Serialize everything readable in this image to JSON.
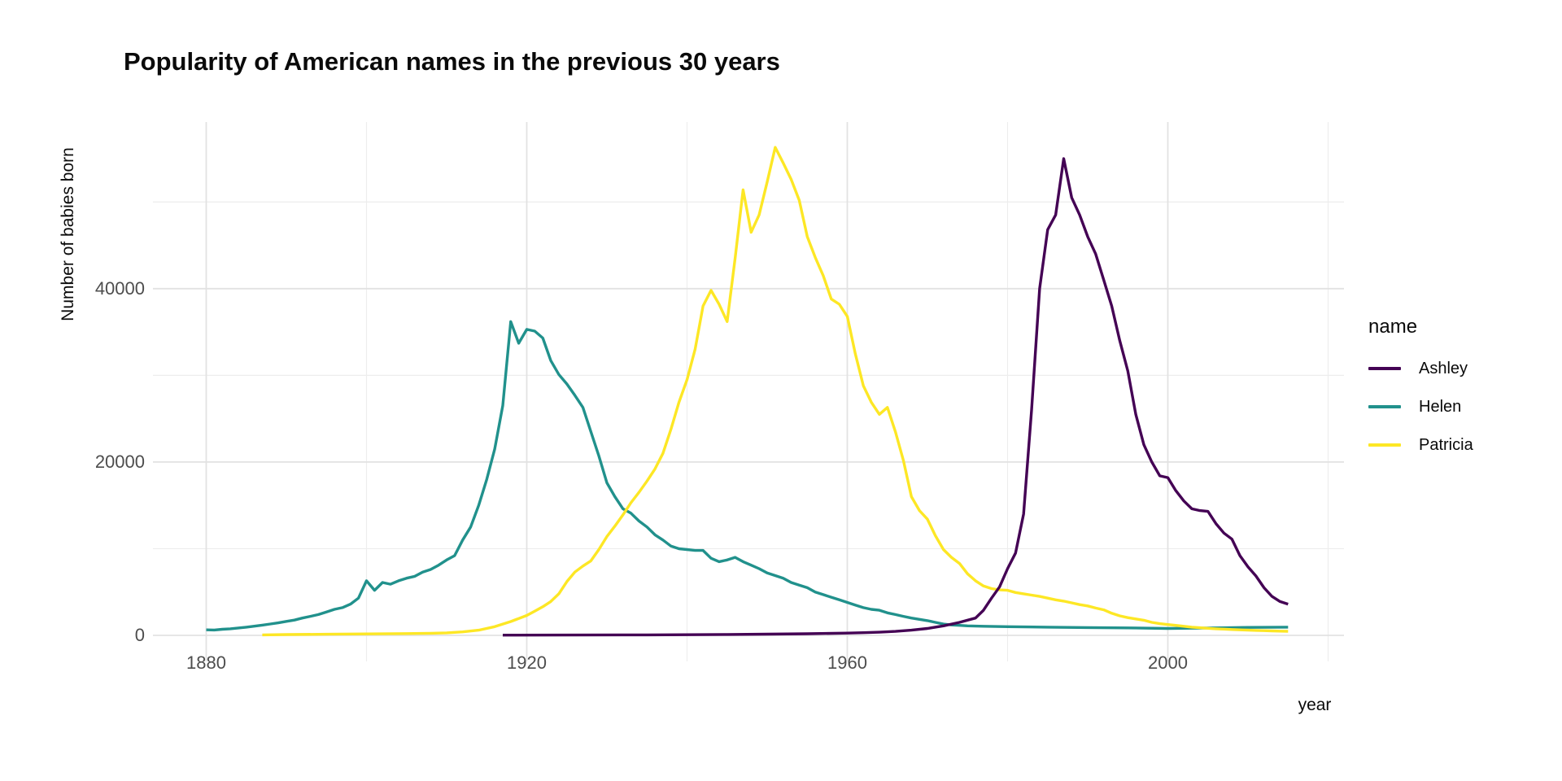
{
  "title": "Popularity of American names in the previous 30 years",
  "axes": {
    "x_label": "year",
    "y_label": "Number of babies born",
    "x_tick_labels": [
      "1880",
      "1920",
      "1960",
      "2000"
    ],
    "y_tick_labels": [
      "0",
      "20000",
      "40000"
    ]
  },
  "legend": {
    "title": "name",
    "items": [
      "Ashley",
      "Helen",
      "Patricia"
    ]
  },
  "colors": {
    "ashley": "#440154",
    "helen": "#21918c",
    "patricia": "#fde725",
    "grid_major": "#e2e2e2",
    "grid_minor": "#ededed",
    "tick_text": "#4d4d4d",
    "title_text": "#0a0a0a"
  },
  "chart_data": {
    "type": "line",
    "title": "Popularity of American names in the previous 30 years",
    "xlabel": "year",
    "ylabel": "Number of babies born",
    "xlim": [
      1873,
      2022
    ],
    "ylim": [
      0,
      59000
    ],
    "grid": {
      "x_major": [
        1880,
        1920,
        1960,
        2000
      ],
      "x_minor": [
        1900,
        1940,
        1980,
        2020
      ],
      "y_major": [
        0,
        20000,
        40000
      ],
      "y_minor": [
        10000,
        30000,
        50000
      ]
    },
    "legend_position": "right",
    "series": [
      {
        "name": "Helen",
        "color": "#21918c",
        "points": [
          [
            1880,
            640
          ],
          [
            1881,
            620
          ],
          [
            1882,
            700
          ],
          [
            1883,
            760
          ],
          [
            1884,
            850
          ],
          [
            1885,
            950
          ],
          [
            1886,
            1060
          ],
          [
            1887,
            1180
          ],
          [
            1888,
            1310
          ],
          [
            1889,
            1450
          ],
          [
            1890,
            1610
          ],
          [
            1891,
            1760
          ],
          [
            1892,
            2000
          ],
          [
            1893,
            2200
          ],
          [
            1894,
            2400
          ],
          [
            1895,
            2700
          ],
          [
            1896,
            3000
          ],
          [
            1897,
            3200
          ],
          [
            1898,
            3600
          ],
          [
            1899,
            4300
          ],
          [
            1900,
            6300
          ],
          [
            1901,
            5200
          ],
          [
            1902,
            6100
          ],
          [
            1903,
            5900
          ],
          [
            1904,
            6300
          ],
          [
            1905,
            6600
          ],
          [
            1906,
            6800
          ],
          [
            1907,
            7300
          ],
          [
            1908,
            7600
          ],
          [
            1909,
            8100
          ],
          [
            1910,
            8700
          ],
          [
            1911,
            9200
          ],
          [
            1912,
            11000
          ],
          [
            1913,
            12500
          ],
          [
            1914,
            15000
          ],
          [
            1915,
            18000
          ],
          [
            1916,
            21500
          ],
          [
            1917,
            26500
          ],
          [
            1918,
            36200
          ],
          [
            1919,
            33700
          ],
          [
            1920,
            35300
          ],
          [
            1921,
            35100
          ],
          [
            1922,
            34300
          ],
          [
            1923,
            31700
          ],
          [
            1924,
            30100
          ],
          [
            1925,
            29000
          ],
          [
            1926,
            27700
          ],
          [
            1927,
            26300
          ],
          [
            1928,
            23500
          ],
          [
            1929,
            20700
          ],
          [
            1930,
            17600
          ],
          [
            1931,
            16000
          ],
          [
            1932,
            14600
          ],
          [
            1933,
            14100
          ],
          [
            1934,
            13200
          ],
          [
            1935,
            12500
          ],
          [
            1936,
            11600
          ],
          [
            1937,
            11000
          ],
          [
            1938,
            10300
          ],
          [
            1939,
            10000
          ],
          [
            1940,
            9900
          ],
          [
            1941,
            9800
          ],
          [
            1942,
            9800
          ],
          [
            1943,
            8900
          ],
          [
            1944,
            8500
          ],
          [
            1945,
            8700
          ],
          [
            1946,
            9000
          ],
          [
            1947,
            8500
          ],
          [
            1948,
            8100
          ],
          [
            1949,
            7700
          ],
          [
            1950,
            7200
          ],
          [
            1951,
            6900
          ],
          [
            1952,
            6600
          ],
          [
            1953,
            6100
          ],
          [
            1954,
            5800
          ],
          [
            1955,
            5500
          ],
          [
            1956,
            5000
          ],
          [
            1957,
            4700
          ],
          [
            1958,
            4400
          ],
          [
            1959,
            4100
          ],
          [
            1960,
            3800
          ],
          [
            1961,
            3500
          ],
          [
            1962,
            3200
          ],
          [
            1963,
            3000
          ],
          [
            1964,
            2900
          ],
          [
            1965,
            2600
          ],
          [
            1966,
            2400
          ],
          [
            1967,
            2200
          ],
          [
            1968,
            2000
          ],
          [
            1969,
            1850
          ],
          [
            1970,
            1700
          ],
          [
            1971,
            1500
          ],
          [
            1972,
            1300
          ],
          [
            1973,
            1200
          ],
          [
            1974,
            1150
          ],
          [
            1975,
            1100
          ],
          [
            1977,
            1050
          ],
          [
            1980,
            1000
          ],
          [
            1985,
            950
          ],
          [
            1990,
            900
          ],
          [
            1995,
            860
          ],
          [
            2000,
            800
          ],
          [
            2005,
            850
          ],
          [
            2010,
            920
          ],
          [
            2015,
            950
          ]
        ]
      },
      {
        "name": "Patricia",
        "color": "#fde725",
        "points": [
          [
            1887,
            60
          ],
          [
            1890,
            90
          ],
          [
            1895,
            130
          ],
          [
            1900,
            170
          ],
          [
            1905,
            210
          ],
          [
            1908,
            240
          ],
          [
            1910,
            290
          ],
          [
            1912,
            400
          ],
          [
            1914,
            600
          ],
          [
            1916,
            1000
          ],
          [
            1918,
            1600
          ],
          [
            1920,
            2300
          ],
          [
            1921,
            2800
          ],
          [
            1922,
            3300
          ],
          [
            1923,
            3900
          ],
          [
            1924,
            4800
          ],
          [
            1925,
            6200
          ],
          [
            1926,
            7300
          ],
          [
            1927,
            8000
          ],
          [
            1928,
            8600
          ],
          [
            1929,
            9900
          ],
          [
            1930,
            11400
          ],
          [
            1931,
            12600
          ],
          [
            1932,
            13900
          ],
          [
            1933,
            15300
          ],
          [
            1934,
            16500
          ],
          [
            1935,
            17800
          ],
          [
            1936,
            19200
          ],
          [
            1937,
            21000
          ],
          [
            1938,
            23800
          ],
          [
            1939,
            26900
          ],
          [
            1940,
            29500
          ],
          [
            1941,
            33000
          ],
          [
            1942,
            38000
          ],
          [
            1943,
            39800
          ],
          [
            1944,
            38200
          ],
          [
            1945,
            36200
          ],
          [
            1946,
            43500
          ],
          [
            1947,
            51400
          ],
          [
            1948,
            46500
          ],
          [
            1949,
            48500
          ],
          [
            1950,
            52300
          ],
          [
            1951,
            56300
          ],
          [
            1952,
            54500
          ],
          [
            1953,
            52600
          ],
          [
            1954,
            50200
          ],
          [
            1955,
            46000
          ],
          [
            1956,
            43600
          ],
          [
            1957,
            41500
          ],
          [
            1958,
            38800
          ],
          [
            1959,
            38200
          ],
          [
            1960,
            36800
          ],
          [
            1961,
            32500
          ],
          [
            1962,
            28800
          ],
          [
            1963,
            26900
          ],
          [
            1964,
            25500
          ],
          [
            1965,
            26300
          ],
          [
            1966,
            23500
          ],
          [
            1967,
            20200
          ],
          [
            1968,
            16000
          ],
          [
            1969,
            14400
          ],
          [
            1970,
            13400
          ],
          [
            1971,
            11500
          ],
          [
            1972,
            9900
          ],
          [
            1973,
            9000
          ],
          [
            1974,
            8300
          ],
          [
            1975,
            7100
          ],
          [
            1976,
            6300
          ],
          [
            1977,
            5700
          ],
          [
            1978,
            5400
          ],
          [
            1979,
            5250
          ],
          [
            1980,
            5200
          ],
          [
            1981,
            4950
          ],
          [
            1982,
            4800
          ],
          [
            1983,
            4650
          ],
          [
            1984,
            4500
          ],
          [
            1985,
            4300
          ],
          [
            1986,
            4100
          ],
          [
            1987,
            3950
          ],
          [
            1988,
            3750
          ],
          [
            1989,
            3550
          ],
          [
            1990,
            3400
          ],
          [
            1991,
            3150
          ],
          [
            1992,
            2950
          ],
          [
            1993,
            2550
          ],
          [
            1994,
            2250
          ],
          [
            1995,
            2050
          ],
          [
            1996,
            1900
          ],
          [
            1997,
            1750
          ],
          [
            1998,
            1500
          ],
          [
            1999,
            1350
          ],
          [
            2000,
            1250
          ],
          [
            2001,
            1150
          ],
          [
            2002,
            1050
          ],
          [
            2003,
            950
          ],
          [
            2004,
            880
          ],
          [
            2005,
            820
          ],
          [
            2006,
            760
          ],
          [
            2007,
            720
          ],
          [
            2008,
            680
          ],
          [
            2009,
            640
          ],
          [
            2010,
            600
          ],
          [
            2011,
            570
          ],
          [
            2012,
            540
          ],
          [
            2013,
            520
          ],
          [
            2014,
            490
          ],
          [
            2015,
            470
          ]
        ]
      },
      {
        "name": "Ashley",
        "color": "#440154",
        "points": [
          [
            1917,
            30
          ],
          [
            1925,
            40
          ],
          [
            1935,
            60
          ],
          [
            1945,
            100
          ],
          [
            1950,
            140
          ],
          [
            1955,
            190
          ],
          [
            1960,
            260
          ],
          [
            1962,
            310
          ],
          [
            1964,
            370
          ],
          [
            1966,
            460
          ],
          [
            1968,
            600
          ],
          [
            1970,
            800
          ],
          [
            1972,
            1100
          ],
          [
            1974,
            1500
          ],
          [
            1976,
            2000
          ],
          [
            1977,
            2900
          ],
          [
            1978,
            4300
          ],
          [
            1979,
            5600
          ],
          [
            1980,
            7700
          ],
          [
            1981,
            9500
          ],
          [
            1982,
            14000
          ],
          [
            1983,
            26000
          ],
          [
            1984,
            40000
          ],
          [
            1985,
            46800
          ],
          [
            1986,
            48500
          ],
          [
            1987,
            55000
          ],
          [
            1988,
            50500
          ],
          [
            1989,
            48500
          ],
          [
            1990,
            46000
          ],
          [
            1991,
            44000
          ],
          [
            1992,
            41000
          ],
          [
            1993,
            38000
          ],
          [
            1994,
            34000
          ],
          [
            1995,
            30500
          ],
          [
            1996,
            25500
          ],
          [
            1997,
            22000
          ],
          [
            1998,
            20000
          ],
          [
            1999,
            18400
          ],
          [
            2000,
            18200
          ],
          [
            2001,
            16700
          ],
          [
            2002,
            15500
          ],
          [
            2003,
            14600
          ],
          [
            2004,
            14400
          ],
          [
            2005,
            14300
          ],
          [
            2006,
            12900
          ],
          [
            2007,
            11800
          ],
          [
            2008,
            11100
          ],
          [
            2009,
            9200
          ],
          [
            2010,
            7900
          ],
          [
            2011,
            6850
          ],
          [
            2012,
            5500
          ],
          [
            2013,
            4500
          ],
          [
            2014,
            3900
          ],
          [
            2015,
            3600
          ]
        ]
      }
    ]
  }
}
